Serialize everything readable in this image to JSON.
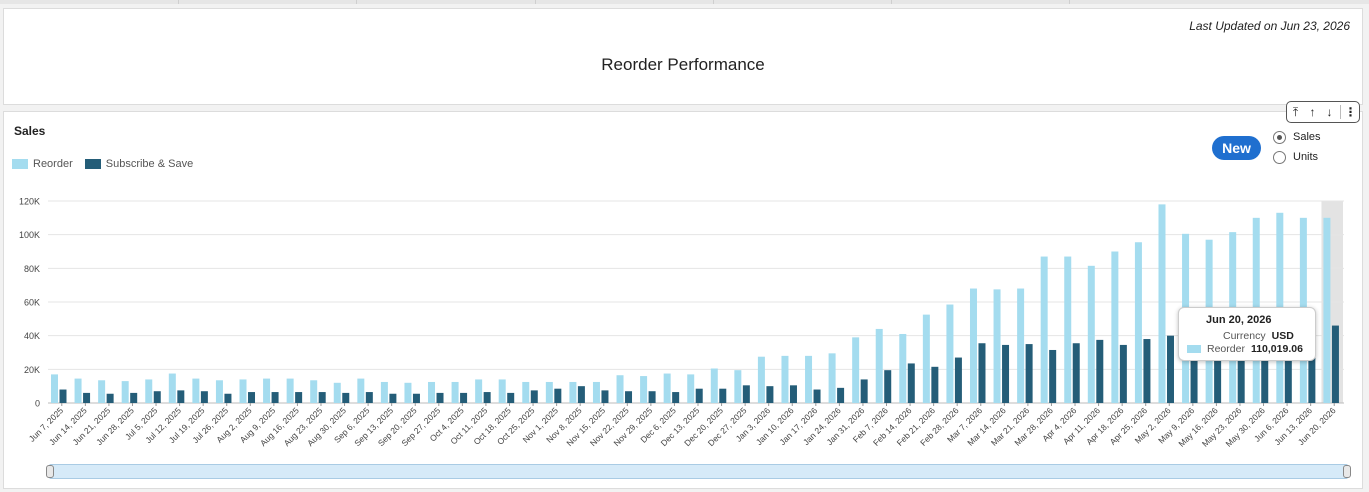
{
  "header": {
    "last_updated": "Last Updated on Jun 23, 2026",
    "title": "Reorder Performance"
  },
  "toolbar": {
    "icons": [
      "move-to-top-icon",
      "move-up-icon",
      "move-down-icon",
      "more-options-icon"
    ],
    "glyphs": {
      "top": "⤒",
      "up": "↑",
      "down": "↓",
      "more": "⋮"
    }
  },
  "card": {
    "title": "Sales",
    "new_label": "New",
    "options": [
      {
        "label": "Sales",
        "selected": true
      },
      {
        "label": "Units",
        "selected": false
      }
    ]
  },
  "colors": {
    "reorder": "#a4dcef",
    "subscribe": "#245d78",
    "new_button": "#1f6fcf"
  },
  "tooltip": {
    "date": "Jun 20, 2026",
    "currency_label": "Currency",
    "currency_value": "USD",
    "series_label": "Reorder",
    "series_value": "110,019.06"
  },
  "chart_data": {
    "type": "bar",
    "title": "Sales",
    "legend": "top-left",
    "grid": true,
    "ylim": [
      0,
      120000
    ],
    "yticks": [
      "0",
      "20K",
      "40K",
      "60K",
      "80K",
      "100K",
      "120K"
    ],
    "categories": [
      "Jun 7, 2025",
      "Jun 14, 2025",
      "Jun 21, 2025",
      "Jun 28, 2025",
      "Jul 5, 2025",
      "Jul 12, 2025",
      "Jul 19, 2025",
      "Jul 26, 2025",
      "Aug 2, 2025",
      "Aug 9, 2025",
      "Aug 16, 2025",
      "Aug 23, 2025",
      "Aug 30, 2025",
      "Sep 6, 2025",
      "Sep 13, 2025",
      "Sep 20, 2025",
      "Sep 27, 2025",
      "Oct 4, 2025",
      "Oct 11, 2025",
      "Oct 18, 2025",
      "Oct 25, 2025",
      "Nov 1, 2025",
      "Nov 8, 2025",
      "Nov 15, 2025",
      "Nov 22, 2025",
      "Nov 29, 2025",
      "Dec 6, 2025",
      "Dec 13, 2025",
      "Dec 20, 2025",
      "Dec 27, 2025",
      "Jan 3, 2026",
      "Jan 10, 2026",
      "Jan 17, 2026",
      "Jan 24, 2026",
      "Jan 31, 2026",
      "Feb 7, 2026",
      "Feb 14, 2026",
      "Feb 21, 2026",
      "Feb 28, 2026",
      "Mar 7, 2026",
      "Mar 14, 2026",
      "Mar 21, 2026",
      "Mar 28, 2026",
      "Apr 4, 2026",
      "Apr 11, 2026",
      "Apr 18, 2026",
      "Apr 25, 2026",
      "May 2, 2026",
      "May 9, 2026",
      "May 16, 2026",
      "May 23, 2026",
      "May 30, 2026",
      "Jun 6, 2026",
      "Jun 13, 2026",
      "Jun 20, 2026"
    ],
    "series": [
      {
        "name": "Reorder",
        "values": [
          17000,
          14500,
          13500,
          13000,
          14000,
          17500,
          14500,
          13500,
          14000,
          14500,
          14500,
          13500,
          12000,
          14500,
          12500,
          12000,
          12500,
          12500,
          14000,
          14000,
          12500,
          12500,
          12500,
          12500,
          16500,
          16000,
          17500,
          17000,
          20500,
          19500,
          27500,
          28000,
          28000,
          29500,
          39000,
          44000,
          41000,
          52500,
          58500,
          68000,
          67500,
          68000,
          87000,
          87000,
          81500,
          90000,
          95500,
          118000,
          100500,
          97000,
          101500,
          110000,
          113000,
          110000,
          110019.06
        ]
      },
      {
        "name": "Subscribe & Save",
        "values": [
          8000,
          6000,
          5500,
          6000,
          7000,
          7500,
          7000,
          5500,
          6500,
          6500,
          6500,
          6500,
          6000,
          6500,
          5500,
          5500,
          6000,
          6000,
          6500,
          6000,
          7500,
          8500,
          10000,
          7500,
          7000,
          7000,
          6500,
          8500,
          8500,
          10500,
          10000,
          10500,
          8000,
          9000,
          14000,
          19500,
          23500,
          21500,
          27000,
          35500,
          34500,
          35000,
          31500,
          35500,
          37500,
          34500,
          38000,
          40000,
          55000,
          41000,
          44000,
          42000,
          44000,
          45000,
          46000
        ]
      }
    ]
  }
}
